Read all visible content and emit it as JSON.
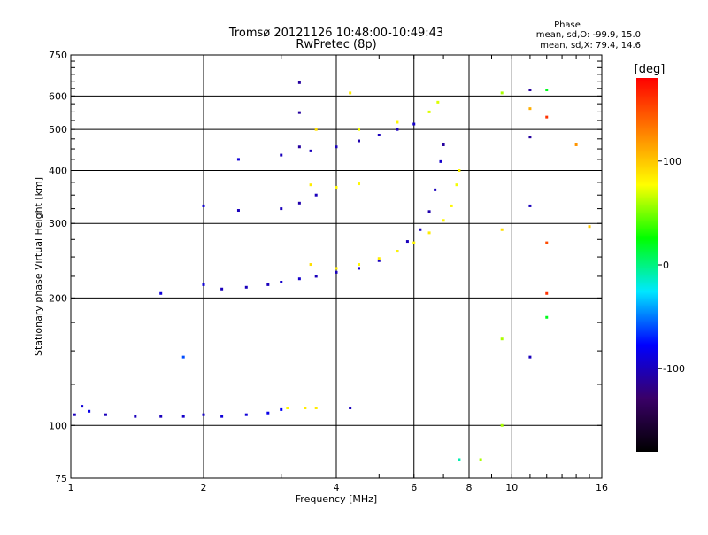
{
  "header": {
    "title_line1": "Tromsø 20121126 10:48:00-10:49:43",
    "title_line2": "RwPretec (8p)",
    "phase_heading": "Phase",
    "phase_o": "mean, sd,O: -99.9, 15.0",
    "phase_x": "mean, sd,X:  79.4, 14.6"
  },
  "chart_data": {
    "type": "scatter",
    "xlabel": "Frequency [MHz]",
    "ylabel": "Stationary phase Virtual Height [km]",
    "xscale": "log",
    "yscale": "log",
    "xlim": [
      1,
      16
    ],
    "ylim": [
      75,
      750
    ],
    "x_ticks": [
      1,
      2,
      4,
      6,
      8,
      10,
      16
    ],
    "y_ticks": [
      75,
      100,
      200,
      300,
      400,
      500,
      600,
      750
    ],
    "grid": true,
    "x_gridlines": [
      2,
      4,
      6,
      8,
      10
    ],
    "y_gridlines": [
      100,
      200,
      300,
      400,
      500,
      600
    ],
    "colorbar": {
      "label": "[deg]",
      "range": [
        -180,
        180
      ],
      "ticks": [
        100,
        0,
        -100
      ],
      "stops": [
        "#000000",
        "#3a0068",
        "#0000ff",
        "#00e8ff",
        "#00ff00",
        "#ffff00",
        "#ff8000",
        "#ff0000"
      ]
    },
    "series": [
      {
        "points": [
          [
            1.02,
            106,
            -100
          ],
          [
            1.06,
            111,
            -90
          ],
          [
            1.1,
            108,
            -85
          ],
          [
            1.2,
            106,
            -100
          ],
          [
            1.4,
            105,
            -100
          ],
          [
            1.6,
            105,
            -100
          ],
          [
            1.8,
            105,
            -95
          ],
          [
            2.0,
            106,
            -95
          ],
          [
            2.2,
            105,
            -90
          ],
          [
            2.5,
            106,
            -90
          ],
          [
            2.8,
            107,
            -85
          ],
          [
            3.0,
            109,
            -80
          ],
          [
            3.1,
            110,
            80
          ],
          [
            3.4,
            110,
            85
          ],
          [
            3.6,
            110,
            85
          ],
          [
            1.6,
            205,
            -90
          ],
          [
            2.0,
            215,
            -90
          ],
          [
            2.2,
            210,
            -100
          ],
          [
            2.5,
            212,
            -100
          ],
          [
            2.8,
            215,
            -100
          ],
          [
            3.0,
            218,
            -95
          ],
          [
            3.3,
            222,
            -95
          ],
          [
            3.6,
            225,
            -100
          ],
          [
            4.0,
            230,
            -100
          ],
          [
            4.5,
            235,
            -95
          ],
          [
            5.0,
            245,
            -100
          ],
          [
            5.5,
            258,
            -95
          ],
          [
            5.8,
            272,
            -100
          ],
          [
            6.2,
            290,
            -100
          ],
          [
            6.5,
            320,
            -105
          ],
          [
            6.7,
            360,
            -100
          ],
          [
            6.9,
            420,
            -95
          ],
          [
            7.0,
            460,
            -110
          ],
          [
            3.5,
            240,
            90
          ],
          [
            4.0,
            235,
            85
          ],
          [
            4.5,
            240,
            80
          ],
          [
            5.0,
            248,
            85
          ],
          [
            5.5,
            258,
            80
          ],
          [
            6.0,
            270,
            80
          ],
          [
            6.5,
            285,
            85
          ],
          [
            7.0,
            305,
            80
          ],
          [
            7.3,
            330,
            80
          ],
          [
            7.5,
            370,
            75
          ],
          [
            7.6,
            400,
            80
          ],
          [
            2.4,
            425,
            -90
          ],
          [
            3.0,
            435,
            -100
          ],
          [
            3.5,
            445,
            -100
          ],
          [
            4.0,
            455,
            -100
          ],
          [
            4.5,
            470,
            -105
          ],
          [
            5.0,
            485,
            -100
          ],
          [
            5.5,
            500,
            -100
          ],
          [
            6.0,
            515,
            -95
          ],
          [
            3.3,
            455,
            -110
          ],
          [
            3.3,
            548,
            -110
          ],
          [
            3.3,
            645,
            -110
          ],
          [
            4.5,
            500,
            75
          ],
          [
            5.5,
            520,
            80
          ],
          [
            6.5,
            550,
            70
          ],
          [
            6.8,
            580,
            70
          ],
          [
            3.6,
            500,
            90
          ],
          [
            4.3,
            610,
            85
          ],
          [
            2.0,
            330,
            -90
          ],
          [
            2.4,
            322,
            -100
          ],
          [
            3.0,
            325,
            -100
          ],
          [
            3.3,
            335,
            -105
          ],
          [
            3.6,
            350,
            -100
          ],
          [
            3.5,
            370,
            85
          ],
          [
            4.0,
            365,
            80
          ],
          [
            4.5,
            372,
            80
          ],
          [
            9.5,
            610,
            60
          ],
          [
            9.5,
            290,
            90
          ],
          [
            9.5,
            160,
            60
          ],
          [
            9.5,
            100,
            60
          ],
          [
            11.0,
            620,
            -110
          ],
          [
            11.0,
            560,
            110
          ],
          [
            11.0,
            480,
            -110
          ],
          [
            11.0,
            330,
            -100
          ],
          [
            11.0,
            145,
            -100
          ],
          [
            12.0,
            620,
            20
          ],
          [
            12.0,
            535,
            160
          ],
          [
            12.0,
            270,
            150
          ],
          [
            12.0,
            205,
            160
          ],
          [
            12.0,
            180,
            20
          ],
          [
            15.0,
            295,
            100
          ],
          [
            14.0,
            460,
            120
          ],
          [
            1.8,
            145,
            -60
          ],
          [
            4.3,
            110,
            -100
          ],
          [
            7.6,
            83,
            -10
          ],
          [
            8.5,
            83,
            60
          ]
        ]
      }
    ]
  }
}
